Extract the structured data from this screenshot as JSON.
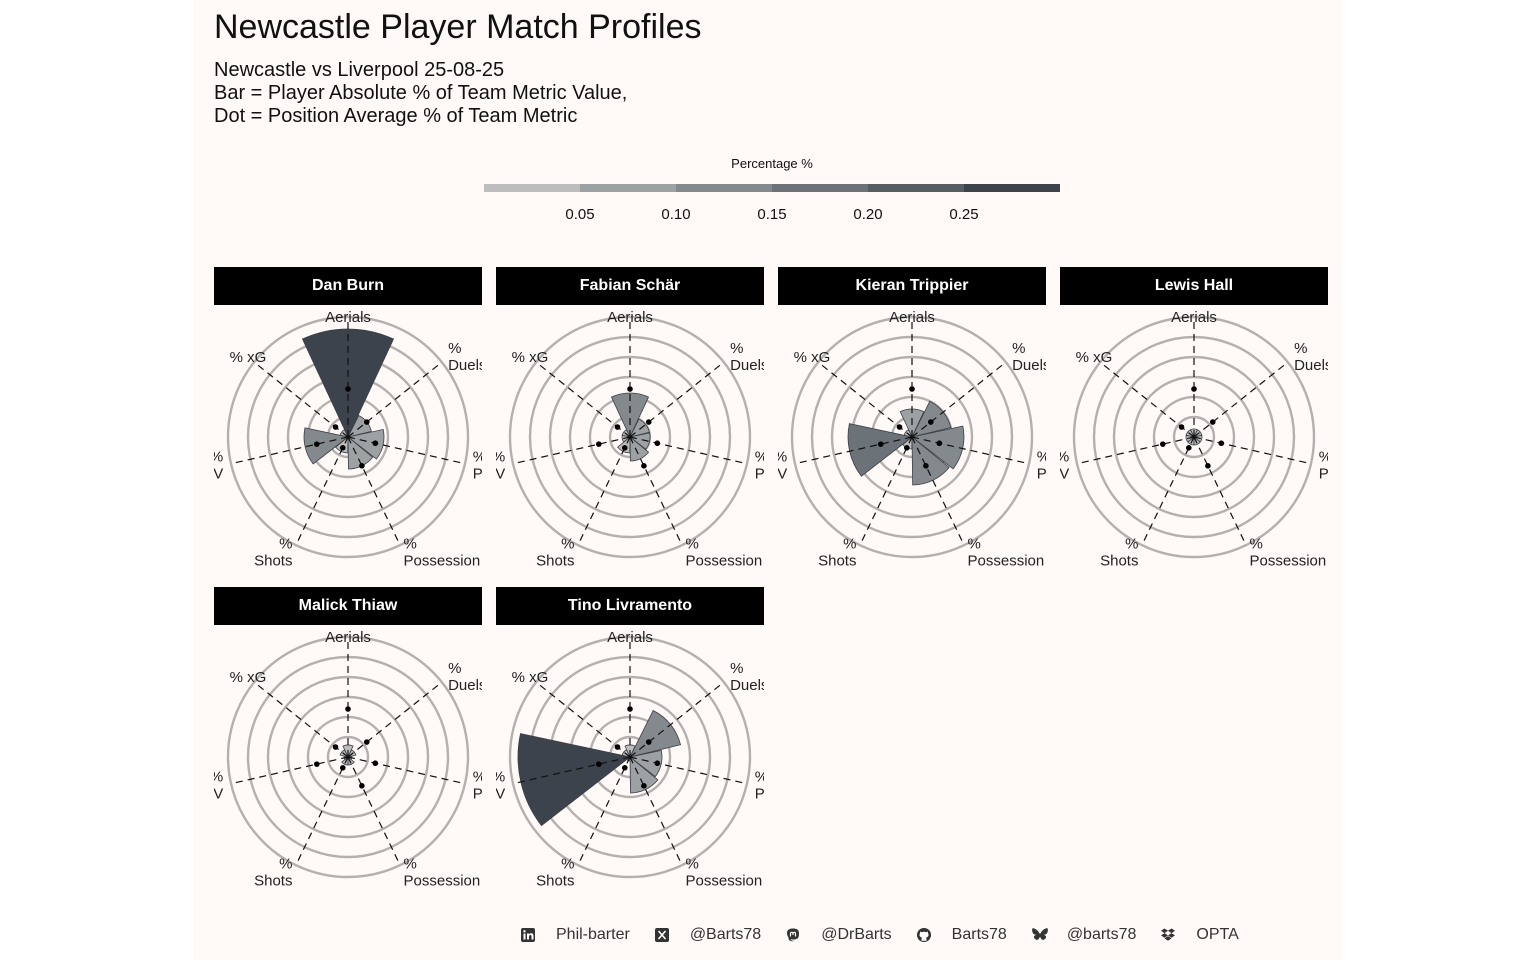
{
  "header": {
    "title": "Newcastle Player Match Profiles",
    "subtitle_lines": [
      "Newcastle vs Liverpool 25-08-25",
      "Bar = Player Absolute % of Team Metric Value,",
      "Dot = Position Average % of Team Metric"
    ]
  },
  "legend": {
    "title": "Percentage %",
    "ticks": [
      "0.05",
      "0.10",
      "0.15",
      "0.20",
      "0.25"
    ],
    "colors": [
      "#bdbdbd",
      "#9da1a3",
      "#83898d",
      "#6b7378",
      "#555d65",
      "#3d434c"
    ]
  },
  "chart_data": {
    "type": "polar-bar",
    "metrics": [
      "% Aerials",
      "% Duels",
      "% Passes",
      "% Possession",
      "% Shots",
      "% EPV",
      "% xG"
    ],
    "axis_labels": [
      {
        "pct": "%",
        "name": "Aerials"
      },
      {
        "pct": "%",
        "name": "Duels"
      },
      {
        "pct": "%",
        "name": "Passes"
      },
      {
        "pct": "%",
        "name": "Possession"
      },
      {
        "pct": "%",
        "name": "Shots"
      },
      {
        "pct": "%",
        "name": "EPV"
      },
      {
        "pct": "",
        "name": "% xG"
      }
    ],
    "rlim": [
      0,
      0.3
    ],
    "ring_breaks": [
      0.05,
      0.1,
      0.15,
      0.2,
      0.25,
      0.3
    ],
    "color_scale_breaks": [
      0.05,
      0.1,
      0.15,
      0.2,
      0.25
    ],
    "position_average_dots": [
      0.12,
      0.06,
      0.07,
      0.08,
      0.03,
      0.08,
      0.04
    ],
    "players": [
      {
        "name": "Dan Burn",
        "values": [
          0.27,
          0.06,
          0.09,
          0.08,
          0.04,
          0.11,
          0.02
        ]
      },
      {
        "name": "Fabian Schär",
        "values": [
          0.11,
          0.05,
          0.05,
          0.06,
          0.04,
          0.02,
          0.02
        ]
      },
      {
        "name": "Kieran Trippier",
        "values": [
          0.07,
          0.1,
          0.13,
          0.12,
          0.03,
          0.16,
          0.02
        ]
      },
      {
        "name": "Lewis Hall",
        "values": [
          0.02,
          0.02,
          0.02,
          0.02,
          0.02,
          0.02,
          0.02
        ]
      },
      {
        "name": "Malick Thiaw",
        "values": [
          0.03,
          0.02,
          0.01,
          0.02,
          0.02,
          0.01,
          0.02
        ]
      },
      {
        "name": "Tino Livramento",
        "values": [
          0.03,
          0.13,
          0.08,
          0.09,
          0.01,
          0.28,
          0.02
        ]
      }
    ]
  },
  "footer": {
    "items": [
      {
        "icon": "linkedin-icon",
        "label": "Phil-barter"
      },
      {
        "icon": "x-twitter-icon",
        "label": "@Barts78"
      },
      {
        "icon": "mastodon-icon",
        "label": "@DrBarts"
      },
      {
        "icon": "github-icon",
        "label": "Barts78"
      },
      {
        "icon": "bluesky-icon",
        "label": "@barts78"
      },
      {
        "icon": "dropbox-icon",
        "label": "OPTA"
      }
    ]
  }
}
